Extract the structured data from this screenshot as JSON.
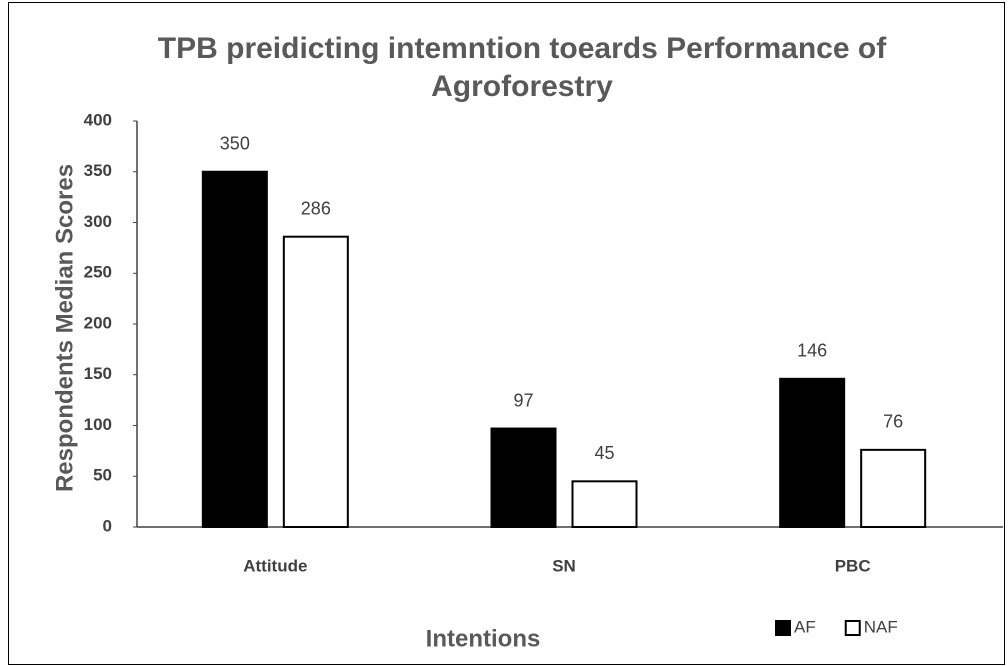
{
  "chart_data": {
    "type": "bar",
    "title": "TPB preidicting intemntion toeards Performance of Agroforestry",
    "xlabel": "Intentions",
    "ylabel": "Respondents Median Scores",
    "categories": [
      "Attitude",
      "SN",
      "PBC"
    ],
    "series": [
      {
        "name": "AF",
        "color": "#000000",
        "edgecolor": "#000000",
        "values": [
          350,
          97,
          146
        ]
      },
      {
        "name": "NAF",
        "color": "#ffffff",
        "edgecolor": "#000000",
        "values": [
          286,
          45,
          76
        ]
      }
    ],
    "ylim": [
      0,
      400
    ],
    "yticks": [
      0,
      50,
      100,
      150,
      200,
      250,
      300,
      350,
      400
    ],
    "grid": false,
    "legend": "lower right",
    "data_labels": true
  }
}
